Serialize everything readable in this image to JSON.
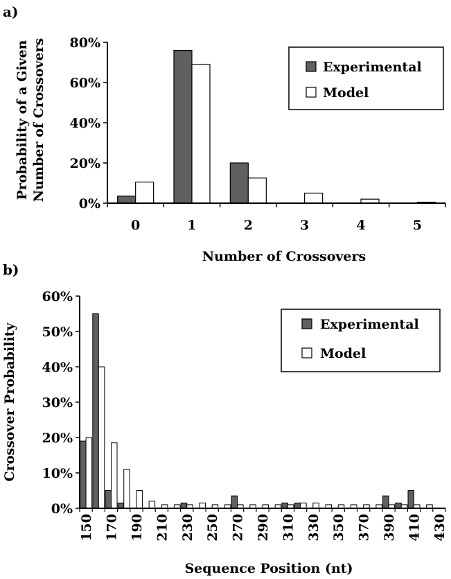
{
  "chart_data": [
    {
      "panel_label": "a)",
      "type": "bar",
      "xlabel": "Number of Crossovers",
      "ylabel_lines": [
        "Probability of a Given",
        "Number of Crossovers"
      ],
      "categories": [
        "0",
        "1",
        "2",
        "3",
        "4",
        "5"
      ],
      "y_ticks": [
        "0%",
        "20%",
        "40%",
        "60%",
        "80%"
      ],
      "ylim": [
        0,
        80
      ],
      "series": [
        {
          "name": "Experimental",
          "color": "#606060",
          "values": [
            3.5,
            76,
            20,
            0,
            0,
            0
          ]
        },
        {
          "name": "Model",
          "color": "#ffffff",
          "values": [
            10.5,
            69,
            12.5,
            5,
            2,
            0.5
          ]
        }
      ],
      "legend_position": "top-right",
      "grid": false
    },
    {
      "panel_label": "b)",
      "type": "bar",
      "xlabel": "Sequence Position (nt)",
      "ylabel": "Crossover Probability",
      "categories": [
        "150",
        "160",
        "170",
        "180",
        "190",
        "200",
        "210",
        "220",
        "230",
        "240",
        "250",
        "260",
        "270",
        "280",
        "290",
        "300",
        "310",
        "320",
        "330",
        "340",
        "350",
        "360",
        "370",
        "380",
        "390",
        "400",
        "410",
        "420",
        "430"
      ],
      "x_tick_labels": [
        "150",
        "170",
        "190",
        "210",
        "230",
        "250",
        "270",
        "290",
        "310",
        "330",
        "350",
        "370",
        "390",
        "410",
        "430"
      ],
      "y_ticks": [
        "0%",
        "10%",
        "20%",
        "30%",
        "40%",
        "50%",
        "60%"
      ],
      "ylim": [
        0,
        60
      ],
      "series": [
        {
          "name": "Experimental",
          "color": "#606060",
          "values": [
            19,
            55,
            5,
            1.5,
            0,
            0,
            0,
            0,
            1.5,
            0,
            0,
            0,
            3.5,
            0,
            0,
            0,
            1.5,
            1.5,
            0,
            0,
            0,
            0,
            0,
            0,
            3.5,
            1.5,
            5,
            0,
            0
          ]
        },
        {
          "name": "Model",
          "color": "#ffffff",
          "values": [
            20,
            40,
            18.5,
            11,
            5,
            2,
            1,
            1,
            1,
            1.5,
            1,
            1,
            1,
            1,
            1,
            1,
            1,
            1.5,
            1.5,
            1,
            1,
            1,
            1,
            1,
            1,
            1,
            1,
            1,
            0
          ]
        }
      ],
      "legend_position": "top-right",
      "grid": false
    }
  ]
}
